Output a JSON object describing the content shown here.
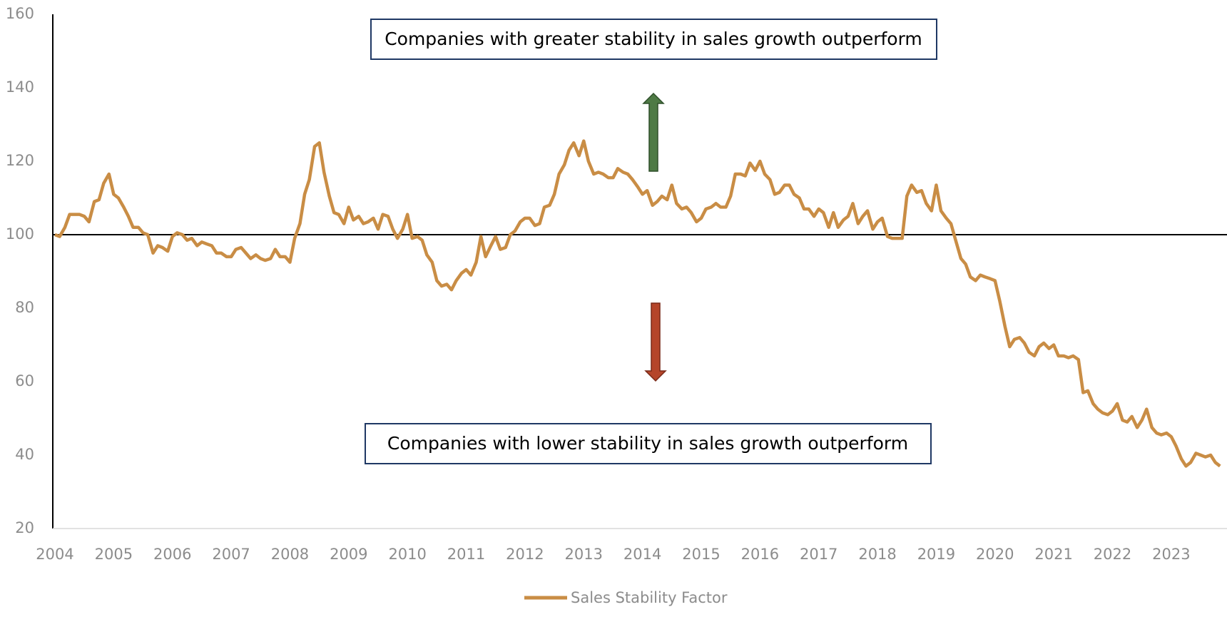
{
  "chart_data": {
    "type": "line",
    "annotations": [
      "Companies with greater stability in sales growth outperform",
      "Companies with lower stability in sales growth outperform"
    ],
    "reference_line": 100,
    "xlim": [
      2004,
      2023.9
    ],
    "xticks": [
      2004,
      2005,
      2006,
      2007,
      2008,
      2009,
      2010,
      2011,
      2012,
      2013,
      2014,
      2015,
      2016,
      2017,
      2018,
      2019,
      2020,
      2021,
      2022,
      2023
    ],
    "ylim": [
      20,
      160
    ],
    "yticks": [
      20,
      40,
      60,
      80,
      100,
      120,
      140,
      160
    ],
    "legend": "bottom",
    "x": [
      2004.0,
      2004.08,
      2004.17,
      2004.25,
      2004.33,
      2004.42,
      2004.5,
      2004.58,
      2004.67,
      2004.75,
      2004.83,
      2004.92,
      2005.0,
      2005.08,
      2005.17,
      2005.25,
      2005.33,
      2005.42,
      2005.5,
      2005.58,
      2005.67,
      2005.75,
      2005.83,
      2005.92,
      2006.0,
      2006.08,
      2006.17,
      2006.25,
      2006.33,
      2006.42,
      2006.5,
      2006.58,
      2006.67,
      2006.75,
      2006.83,
      2006.92,
      2007.0,
      2007.08,
      2007.17,
      2007.25,
      2007.33,
      2007.42,
      2007.5,
      2007.58,
      2007.67,
      2007.75,
      2007.83,
      2007.92,
      2008.0,
      2008.08,
      2008.17,
      2008.25,
      2008.33,
      2008.42,
      2008.5,
      2008.58,
      2008.67,
      2008.75,
      2008.83,
      2008.92,
      2009.0,
      2009.08,
      2009.17,
      2009.25,
      2009.33,
      2009.42,
      2009.5,
      2009.58,
      2009.67,
      2009.75,
      2009.83,
      2009.92,
      2010.0,
      2010.08,
      2010.17,
      2010.25,
      2010.33,
      2010.42,
      2010.5,
      2010.58,
      2010.67,
      2010.75,
      2010.83,
      2010.92,
      2011.0,
      2011.08,
      2011.17,
      2011.25,
      2011.33,
      2011.42,
      2011.5,
      2011.58,
      2011.67,
      2011.75,
      2011.83,
      2011.92,
      2012.0,
      2012.08,
      2012.17,
      2012.25,
      2012.33,
      2012.42,
      2012.5,
      2012.58,
      2012.67,
      2012.75,
      2012.83,
      2012.92,
      2013.0,
      2013.08,
      2013.17,
      2013.25,
      2013.33,
      2013.42,
      2013.5,
      2013.58,
      2013.67,
      2013.75,
      2013.83,
      2013.92,
      2014.0,
      2014.08,
      2014.17,
      2014.25,
      2014.33,
      2014.42,
      2014.5,
      2014.58,
      2014.67,
      2014.75,
      2014.83,
      2014.92,
      2015.0,
      2015.08,
      2015.17,
      2015.25,
      2015.33,
      2015.42,
      2015.5,
      2015.58,
      2015.67,
      2015.75,
      2015.83,
      2015.92,
      2016.0,
      2016.08,
      2016.17,
      2016.25,
      2016.33,
      2016.42,
      2016.5,
      2016.58,
      2016.67,
      2016.75,
      2016.83,
      2016.92,
      2017.0,
      2017.08,
      2017.17,
      2017.25,
      2017.33,
      2017.42,
      2017.5,
      2017.58,
      2017.67,
      2017.75,
      2017.83,
      2017.92,
      2018.0,
      2018.08,
      2018.17,
      2018.25,
      2018.33,
      2018.42,
      2018.5,
      2018.58,
      2018.67,
      2018.75,
      2018.83,
      2018.92,
      2019.0,
      2019.08,
      2019.17,
      2019.25,
      2019.33,
      2019.42,
      2019.5,
      2019.58,
      2019.67,
      2019.75,
      2019.83,
      2019.92,
      2020.0,
      2020.08,
      2020.17,
      2020.25,
      2020.33,
      2020.42,
      2020.5,
      2020.58,
      2020.67,
      2020.75,
      2020.83,
      2020.92,
      2021.0,
      2021.08,
      2021.17,
      2021.25,
      2021.33,
      2021.42,
      2021.5,
      2021.58,
      2021.67,
      2021.75,
      2021.83,
      2021.92,
      2022.0,
      2022.08,
      2022.17,
      2022.25,
      2022.33,
      2022.42,
      2022.5,
      2022.58,
      2022.67,
      2022.75,
      2022.83,
      2022.92,
      2023.0,
      2023.08,
      2023.17,
      2023.25,
      2023.33,
      2023.42,
      2023.5,
      2023.58,
      2023.67,
      2023.75,
      2023.83
    ],
    "series": [
      {
        "name": "Sales Stability Factor",
        "color": "#c98d45",
        "values": [
          100,
          99.5,
          102,
          105.5,
          105.5,
          105.5,
          105,
          103.5,
          109,
          109.5,
          114,
          116.5,
          111,
          110,
          107.5,
          105,
          102,
          102,
          100.5,
          100,
          95,
          97,
          96.5,
          95.5,
          99.5,
          100.5,
          100,
          98.5,
          99,
          97,
          98,
          97.5,
          97,
          95,
          95,
          94,
          94,
          96,
          96.5,
          95,
          93.5,
          94.5,
          93.5,
          93,
          93.5,
          96,
          94,
          94,
          92.5,
          99,
          103,
          111,
          115,
          124,
          125,
          117,
          110.5,
          106,
          105.5,
          103,
          107.5,
          104,
          105,
          103,
          103.5,
          104.5,
          101.5,
          105.5,
          105,
          101.5,
          99,
          101.5,
          105.5,
          99,
          99.5,
          98.5,
          94.5,
          92.5,
          87.5,
          86,
          86.5,
          85,
          87.5,
          89.5,
          90.5,
          89,
          92.5,
          99.5,
          94,
          97,
          99.5,
          96,
          96.5,
          100,
          101,
          103.5,
          104.5,
          104.5,
          102.5,
          103,
          107.5,
          108,
          111,
          116.5,
          119,
          123,
          125,
          121.5,
          125.5,
          120,
          116.5,
          117,
          116.5,
          115.5,
          115.5,
          118,
          117,
          116.5,
          115,
          113,
          111,
          112,
          108,
          109,
          110.5,
          109.5,
          113.5,
          108.5,
          107,
          107.5,
          106,
          103.5,
          104.5,
          107,
          107.5,
          108.5,
          107.5,
          107.5,
          110.5,
          116.5,
          116.5,
          116,
          119.5,
          117.5,
          120,
          116.5,
          115,
          111,
          111.5,
          113.5,
          113.5,
          111,
          110,
          107,
          107,
          105,
          107,
          106,
          102,
          106,
          102,
          104,
          105,
          108.5,
          103,
          105,
          106.5,
          101.5,
          103.5,
          104.5,
          99.5,
          99,
          99,
          99,
          110.5,
          113.5,
          111.5,
          112,
          108.5,
          106.5,
          113.5,
          106.5,
          104.5,
          103,
          98.5,
          93.5,
          92,
          88.5,
          87.5,
          89,
          88.5,
          88,
          87.5,
          82,
          75,
          69.5,
          71.5,
          72,
          70.5,
          68,
          67,
          69.5,
          70.5,
          69,
          70,
          67,
          67,
          66.5,
          67,
          66,
          57,
          57.5,
          54,
          52.5,
          51.5,
          51,
          52,
          54,
          49.5,
          49,
          50.5,
          47.5,
          49.5,
          52.5,
          47.5,
          46,
          45.5,
          46,
          45,
          42.5,
          39,
          37,
          38,
          40.5,
          40,
          39.5,
          40,
          38,
          37
        ]
      }
    ]
  }
}
